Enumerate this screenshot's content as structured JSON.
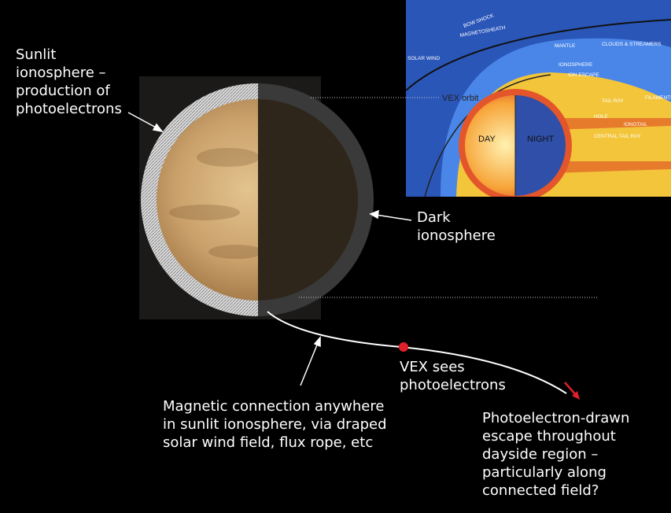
{
  "labels": {
    "sunlit": [
      "Sunlit",
      "ionosphere –",
      "production of",
      "photoelectrons"
    ],
    "dark": [
      "Dark",
      "ionosphere"
    ],
    "magnetic": [
      "Magnetic connection anywhere",
      "in sunlit ionosphere, via draped",
      "solar wind field, flux rope, etc"
    ],
    "vex": [
      "VEX sees",
      "photoelectrons"
    ],
    "escape": [
      "Photoelectron-drawn",
      "escape throughout",
      "dayside region –",
      "particularly along",
      "connected field?"
    ]
  },
  "inset": {
    "bow_shock": "BOW SHOCK",
    "magnetosheath": "MAGNETOSHEATH",
    "solar_wind": "SOLAR WIND",
    "mantle": "MANTLE",
    "clouds": "CLOUDS & STREAMERS",
    "ionosphere": "IONOSPHERE",
    "ion_escape": "ION ESCAPE",
    "vex_orbit": "VEX orbit",
    "day": "DAY",
    "night": "NIGHT",
    "tail_ray": "TAIL RAY",
    "hole": "HOLE",
    "ionotail": "IONOTAIL",
    "central_tail_ray": "CENTRAL TAIL RAY",
    "filaments": "FILAMENTS"
  }
}
